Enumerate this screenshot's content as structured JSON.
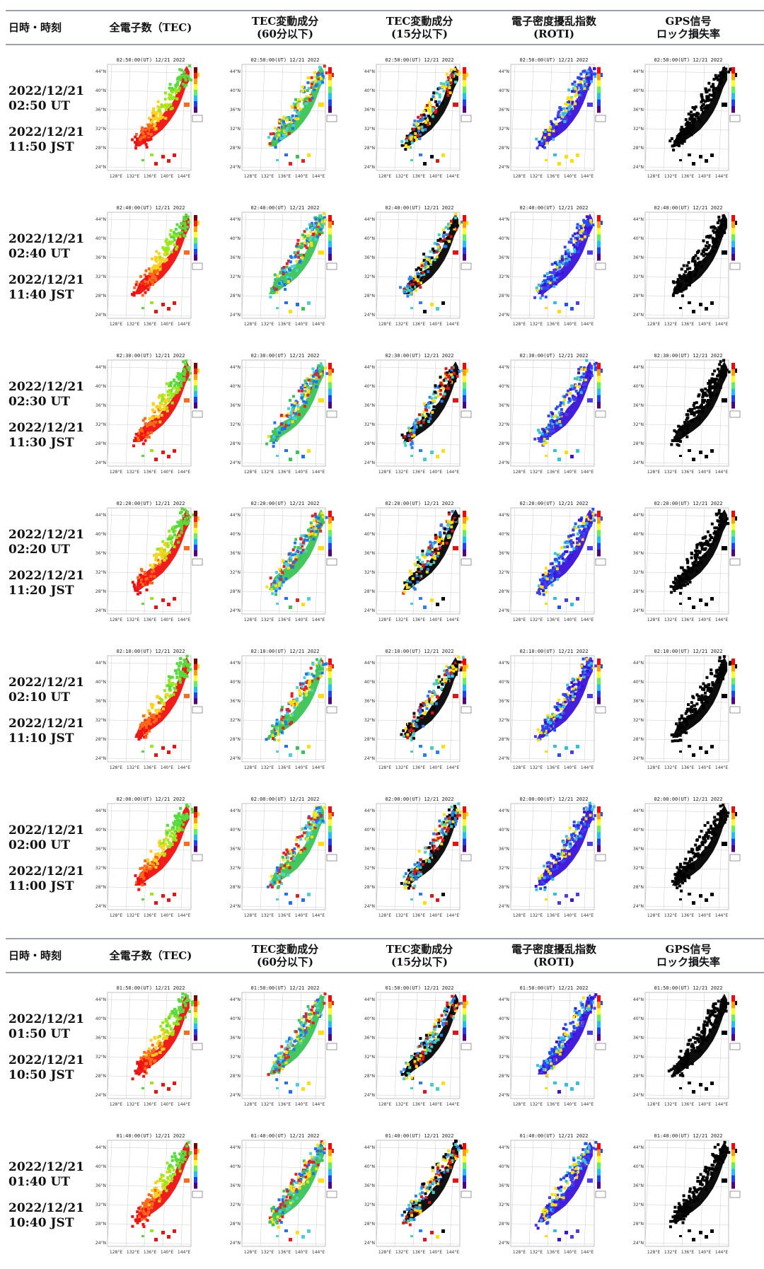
{
  "header": {
    "datetime": "日時・時刻",
    "tec": "全電子数（TEC)",
    "tec60": "TEC変動成分\n(60分以下)",
    "tec15": "TEC変動成分\n(15分以下)",
    "roti": "電子密度擾乱指数\n(ROTI)",
    "lol": "GPS信号\nロック損失率"
  },
  "rows": [
    {
      "date": "2022/12/21",
      "ut": "02:50 UT",
      "jst_date": "2022/12/21",
      "jst": "11:50 JST",
      "map_title": "02:50:00(UT) 12/21 2022"
    },
    {
      "date": "2022/12/21",
      "ut": "02:40 UT",
      "jst_date": "2022/12/21",
      "jst": "11:40 JST",
      "map_title": "02:40:00(UT) 12/21 2022"
    },
    {
      "date": "2022/12/21",
      "ut": "02:30 UT",
      "jst_date": "2022/12/21",
      "jst": "11:30 JST",
      "map_title": "02:30:00(UT) 12/21 2022"
    },
    {
      "date": "2022/12/21",
      "ut": "02:20 UT",
      "jst_date": "2022/12/21",
      "jst": "11:20 JST",
      "map_title": "02:20:00(UT) 12/21 2022"
    },
    {
      "date": "2022/12/21",
      "ut": "02:10 UT",
      "jst_date": "2022/12/21",
      "jst": "11:10 JST",
      "map_title": "02:10:00(UT) 12/21 2022"
    },
    {
      "date": "2022/12/21",
      "ut": "02:00 UT",
      "jst_date": "2022/12/21",
      "jst": "11:00 JST",
      "map_title": "02:00:00(UT) 12/21 2022"
    },
    {
      "date": "2022/12/21",
      "ut": "01:50 UT",
      "jst_date": "2022/12/21",
      "jst": "10:50 JST",
      "map_title": "01:50:00(UT) 12/21 2022"
    },
    {
      "date": "2022/12/21",
      "ut": "01:40 UT",
      "jst_date": "2022/12/21",
      "jst": "10:40 JST",
      "map_title": "01:40:00(UT) 12/21 2022"
    }
  ],
  "map_axes": {
    "lat_ticks": [
      "44°N",
      "40°N",
      "36°N",
      "32°N",
      "28°N",
      "24°N"
    ],
    "lon_ticks": [
      "128°E",
      "132°E",
      "136°E",
      "140°E",
      "144°E"
    ]
  },
  "map_styles": [
    {
      "name": "tec",
      "stops": [
        "#f01010",
        "#ff6a1a",
        "#ffd21a",
        "#9be81a",
        "#56dc3a"
      ],
      "cbar": [
        "#7a0000",
        "#ff2000",
        "#ffa000",
        "#ffff30",
        "#60f060",
        "#20c0ff",
        "#2040ff",
        "#500080"
      ]
    },
    {
      "name": "tec60",
      "stops": [
        "#39c455",
        "#ffe000",
        "#e82020",
        "#2070ff",
        "#4ad0e0"
      ],
      "cbar": [
        "#ff0000",
        "#ffa000",
        "#ffff30",
        "#60f060",
        "#20c0ff",
        "#2040ff",
        "#500080"
      ]
    },
    {
      "name": "tec15",
      "stops": [
        "#050505",
        "#e01515",
        "#ffe000",
        "#2a7fff",
        "#45d0c0"
      ],
      "cbar": [
        "#ff0000",
        "#ffa000",
        "#ffff30",
        "#60f060",
        "#20c0ff",
        "#2040ff",
        "#500080"
      ]
    },
    {
      "name": "roti",
      "stops": [
        "#3a12d8",
        "#4a3af0",
        "#2050ff",
        "#30c0e0",
        "#ffe000"
      ],
      "cbar": [
        "#ff0000",
        "#ffa000",
        "#ffff30",
        "#60f060",
        "#20c0ff",
        "#2040ff",
        "#500080"
      ]
    },
    {
      "name": "lol",
      "stops": [
        "#000000",
        "#000000",
        "#000000",
        "#000000",
        "#000000"
      ],
      "cbar": [
        "#ff0000",
        "#ffa000",
        "#ffff30",
        "#60f060",
        "#20c0ff",
        "#2040ff",
        "#500080"
      ]
    }
  ]
}
